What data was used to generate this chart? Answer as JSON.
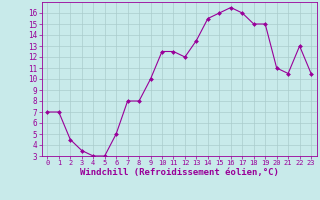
{
  "x": [
    0,
    1,
    2,
    3,
    4,
    5,
    6,
    7,
    8,
    9,
    10,
    11,
    12,
    13,
    14,
    15,
    16,
    17,
    18,
    19,
    20,
    21,
    22,
    23
  ],
  "y": [
    7.0,
    7.0,
    4.5,
    3.5,
    3.0,
    3.0,
    5.0,
    8.0,
    8.0,
    10.0,
    12.5,
    12.5,
    12.0,
    13.5,
    15.5,
    16.0,
    16.5,
    16.0,
    15.0,
    15.0,
    11.0,
    10.5,
    13.0,
    10.5
  ],
  "line_color": "#990099",
  "marker": "D",
  "marker_size": 2,
  "bg_color": "#c8eaea",
  "grid_color": "#aacccc",
  "xlabel": "Windchill (Refroidissement éolien,°C)",
  "xlabel_color": "#990099",
  "tick_color": "#990099",
  "ylim": [
    3,
    17
  ],
  "yticks": [
    3,
    4,
    5,
    6,
    7,
    8,
    9,
    10,
    11,
    12,
    13,
    14,
    15,
    16
  ],
  "xticks": [
    0,
    1,
    2,
    3,
    4,
    5,
    6,
    7,
    8,
    9,
    10,
    11,
    12,
    13,
    14,
    15,
    16,
    17,
    18,
    19,
    20,
    21,
    22,
    23
  ],
  "font_family": "monospace"
}
